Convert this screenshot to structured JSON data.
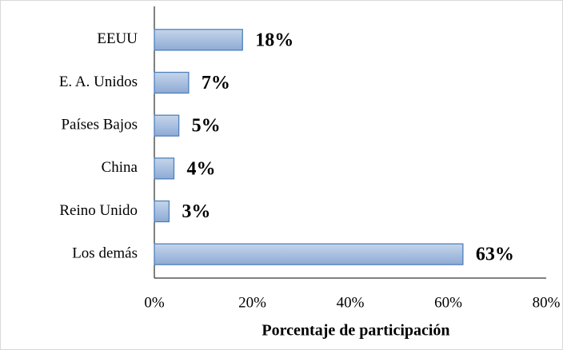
{
  "chart_data": {
    "type": "bar",
    "orientation": "horizontal",
    "x_label": "Porcentaje de participación",
    "categories": [
      "EEUU",
      "E. A. Unidos",
      "Países Bajos",
      "China",
      "Reino Unido",
      "Los demás"
    ],
    "values": [
      18,
      7,
      5,
      4,
      3,
      63
    ],
    "value_labels": [
      "18%",
      "7%",
      "5%",
      "4%",
      "3%",
      "63%"
    ],
    "color": "#95b3d7",
    "xlim": [
      0,
      80
    ],
    "xticks": [
      {
        "value": 0,
        "label": "0%"
      },
      {
        "value": 20,
        "label": "20%"
      },
      {
        "value": 40,
        "label": "40%"
      },
      {
        "value": 60,
        "label": "60%"
      },
      {
        "value": 80,
        "label": "80%"
      }
    ],
    "grid": false
  }
}
